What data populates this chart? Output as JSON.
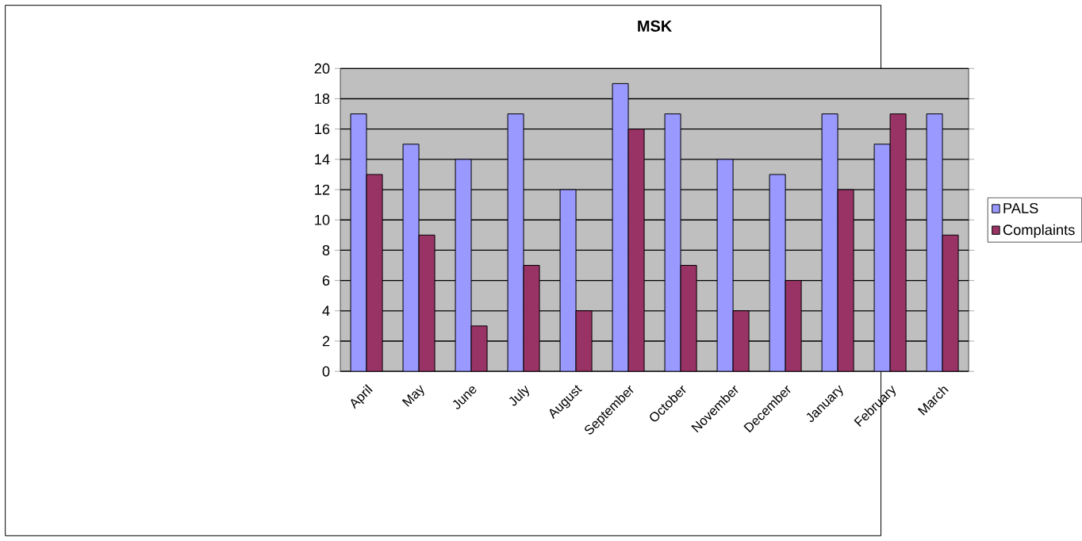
{
  "chart_data": {
    "type": "bar",
    "title": "MSK",
    "categories": [
      "April",
      "May",
      "June",
      "July",
      "August",
      "September",
      "October",
      "November",
      "December",
      "January",
      "February",
      "March"
    ],
    "series": [
      {
        "name": "PALS",
        "color": "#9999ff",
        "values": [
          17,
          15,
          14,
          17,
          12,
          19,
          17,
          14,
          13,
          17,
          15,
          17
        ]
      },
      {
        "name": "Complaints",
        "color": "#993366",
        "values": [
          13,
          9,
          3,
          7,
          4,
          16,
          7,
          4,
          6,
          12,
          17,
          9
        ]
      }
    ],
    "ylim": [
      0,
      20
    ],
    "yticks": [
      0,
      2,
      4,
      6,
      8,
      10,
      12,
      14,
      16,
      18,
      20
    ],
    "grid": "y",
    "legend": "right"
  }
}
